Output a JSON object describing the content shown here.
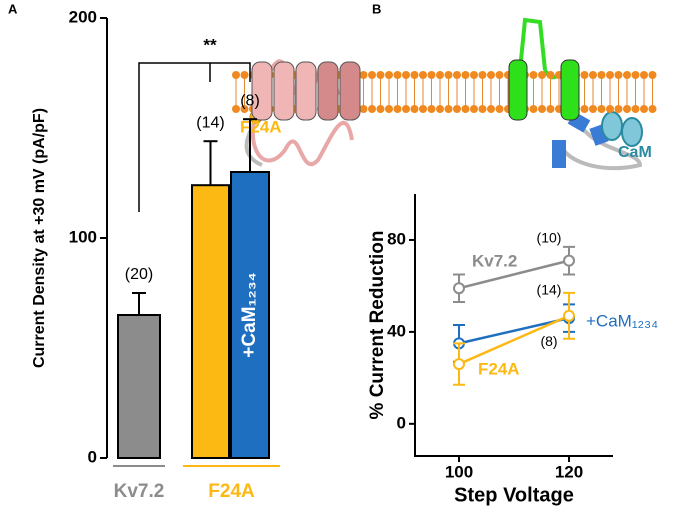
{
  "chart_data": [
    {
      "type": "bar",
      "panel": "A",
      "ylabel": "Current Density at +30 mV (pA/pF)",
      "ylim": [
        0,
        200
      ],
      "yticks": [
        0,
        100,
        200
      ],
      "values": [
        65,
        124,
        130
      ],
      "errors": [
        10,
        20,
        24
      ],
      "colors": [
        "#8c8c8c",
        "#fdb913",
        "#1f6fc0"
      ],
      "n_labels": [
        "(20)",
        "(14)",
        "(8)"
      ],
      "bar_labels": [
        null,
        null,
        "+CaM₁₂₃₄"
      ],
      "groups": [
        {
          "label": "Kv7.2",
          "color": "#8c8c8c"
        },
        {
          "label": "F24A",
          "color": "#fdb913"
        }
      ],
      "significance": "**"
    },
    {
      "type": "line",
      "panel": "B",
      "xlabel": "Step Voltage",
      "ylabel": "% Current Reduction",
      "x": [
        100,
        120
      ],
      "xlim": [
        92,
        128
      ],
      "xticks": [
        100,
        120
      ],
      "ylim": [
        -14,
        100
      ],
      "yticks": [
        0,
        40,
        80
      ],
      "series": [
        {
          "name": "Kv7.2",
          "color": "#8c8c8c",
          "values": [
            59,
            71
          ],
          "errors": [
            6,
            6
          ],
          "n_labels": [
            null,
            "(10)"
          ]
        },
        {
          "name": "+CaM₁₂₃₄",
          "color": "#1f6fc0",
          "values": [
            35,
            46
          ],
          "errors": [
            8,
            6
          ],
          "n_labels": [
            null,
            "(8)"
          ]
        },
        {
          "name": "F24A",
          "color": "#fdb913",
          "values": [
            26,
            47
          ],
          "errors": [
            9,
            10
          ],
          "n_labels": [
            null,
            "(14)"
          ]
        }
      ]
    }
  ],
  "diagram": {
    "labels": [
      "F24A",
      "CaM"
    ]
  }
}
